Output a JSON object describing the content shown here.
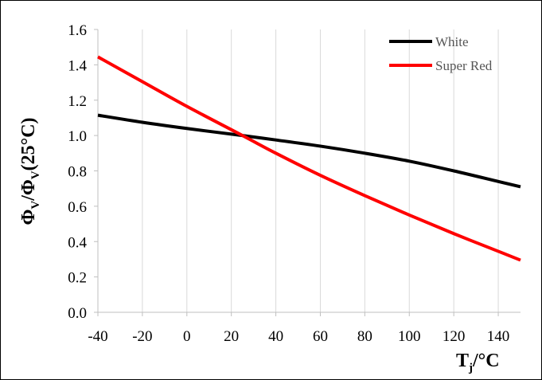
{
  "chart_data": {
    "type": "line",
    "title": "",
    "xlabel": {
      "main": "T",
      "sub": "j",
      "tail": "/°C"
    },
    "ylabel": {
      "p1": "Φ",
      "s1": "V",
      "p2": "/Φ",
      "s2": "V",
      "p3": "(25°C)"
    },
    "xlim": [
      -40,
      150
    ],
    "ylim": [
      0.0,
      1.6
    ],
    "xticks": [
      -40,
      -20,
      0,
      20,
      40,
      60,
      80,
      100,
      120,
      140
    ],
    "xtick_labels": [
      "-40",
      "-20",
      "0",
      "20",
      "40",
      "60",
      "80",
      "100",
      "120",
      "140"
    ],
    "yticks": [
      0.0,
      0.2,
      0.4,
      0.6,
      0.8,
      1.0,
      1.2,
      1.4,
      1.6
    ],
    "ytick_labels": [
      "0.0",
      "0.2",
      "0.4",
      "0.6",
      "0.8",
      "1.0",
      "1.2",
      "1.4",
      "1.6"
    ],
    "grid": {
      "vertical": true,
      "horizontal": false
    },
    "legend_position": "top-right",
    "series": [
      {
        "name": "White",
        "color": "#000000",
        "x": [
          -40,
          -20,
          0,
          25,
          40,
          60,
          80,
          100,
          120,
          140,
          150
        ],
        "y": [
          1.115,
          1.075,
          1.04,
          1.0,
          0.975,
          0.94,
          0.9,
          0.855,
          0.8,
          0.74,
          0.71
        ]
      },
      {
        "name": "Super Red",
        "color": "#ff0000",
        "x": [
          -40,
          -20,
          0,
          25,
          40,
          60,
          80,
          100,
          120,
          140,
          150
        ],
        "y": [
          1.445,
          1.305,
          1.165,
          1.0,
          0.9,
          0.775,
          0.66,
          0.55,
          0.445,
          0.345,
          0.295
        ]
      }
    ]
  }
}
